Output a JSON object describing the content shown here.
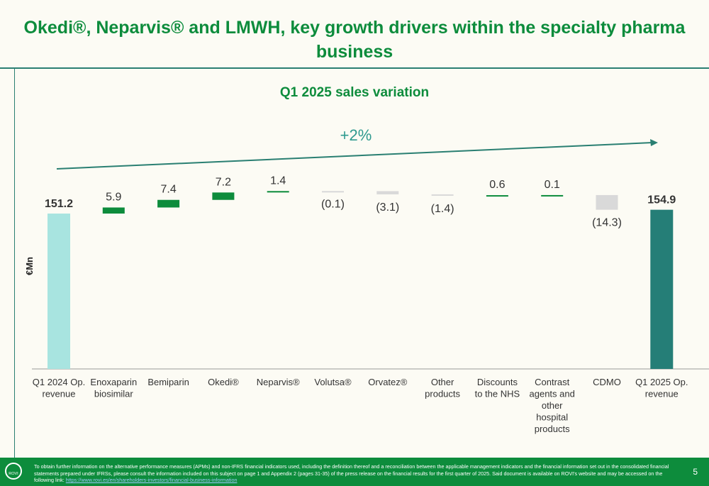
{
  "header": {
    "title_line1": "Okedi®, Neparvis® and LMWH, key growth drivers within the specialty pharma",
    "title_line2": "business"
  },
  "colors": {
    "title_green": "#0d8c3c",
    "start_bar": "#a8e4e0",
    "end_bar": "#257e77",
    "increase": "#0d8c3c",
    "decrease": "#d9d9d9",
    "trend_arrow": "#2a7f72",
    "footer_bg": "#0d8c3c"
  },
  "chart_data": {
    "type": "bar",
    "subtype": "waterfall",
    "title": "Q1 2025 sales variation",
    "ylabel": "€Mn",
    "growth_annotation": "+2%",
    "categories": [
      [
        "Q1 2024 Op.",
        "revenue"
      ],
      [
        "Enoxaparin",
        "biosimilar"
      ],
      [
        "Bemiparin"
      ],
      [
        "Okedi®"
      ],
      [
        "Neparvis®"
      ],
      [
        "Volutsa®"
      ],
      [
        "Orvatez®"
      ],
      [
        "Other",
        "products"
      ],
      [
        "Discounts",
        "to the NHS"
      ],
      [
        "Contrast",
        "agents and",
        "other",
        "hospital",
        "products"
      ],
      [
        "CDMO"
      ],
      [
        "Q1 2025 Op.",
        "revenue"
      ]
    ],
    "values": [
      151.2,
      5.9,
      7.4,
      7.2,
      1.4,
      -0.1,
      -3.1,
      -1.4,
      0.6,
      0.1,
      -14.3,
      154.9
    ],
    "kinds": [
      "total",
      "delta",
      "delta",
      "delta",
      "delta",
      "delta",
      "delta",
      "delta",
      "delta",
      "delta",
      "delta",
      "total"
    ],
    "labels": [
      "151.2",
      "5.9",
      "7.4",
      "7.2",
      "1.4",
      "(0.1)",
      "(3.1)",
      "(1.4)",
      "0.6",
      "0.1",
      "(14.3)",
      "154.9"
    ]
  },
  "footer": {
    "logo_text": "ROVI",
    "note": "To obtain further information on the alternative performance measures (APMs) and non-IFRS financial indicators used, including the definition thereof and a reconciliation between the applicable management indicators and the financial information set out in the consolidated financial statements prepared under IFRSs, please consult the information included on this subject on page 1 and Appendix 2 (pages 31-35) of the press release on the financial results for the first quarter of 2025. Said document is available on ROVI's website and may be accessed on the following link: ",
    "link_text": "https://www.rovi.es/en/shareholders-investors/financial-business-information",
    "page_number": "5"
  }
}
